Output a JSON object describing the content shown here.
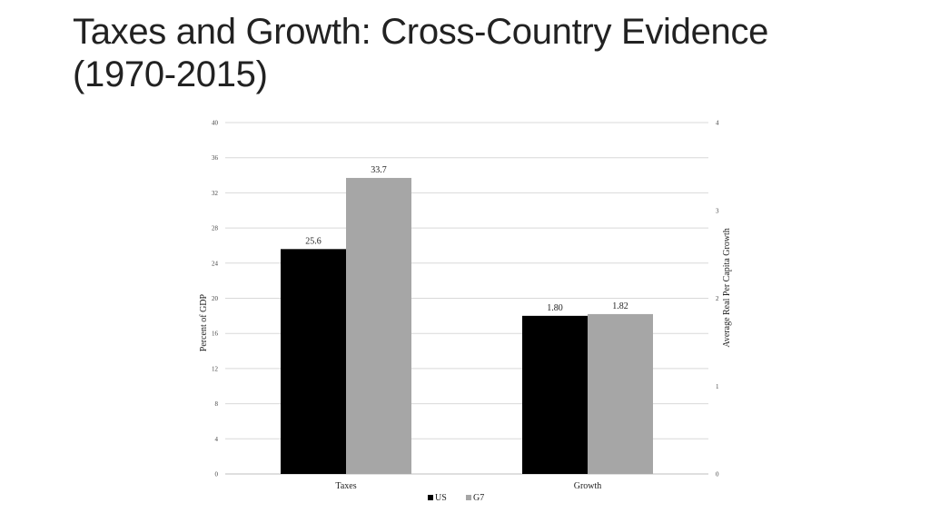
{
  "slide": {
    "title_line1": "Taxes and Growth: Cross-Country Evidence",
    "title_line2": "(1970-2015)"
  },
  "chart_data": {
    "type": "bar",
    "categories": [
      "Taxes",
      "Growth"
    ],
    "series": [
      {
        "name": "US",
        "color": "#000000"
      },
      {
        "name": "G7",
        "color": "#a6a6a6"
      }
    ],
    "points": [
      {
        "category": "Taxes",
        "series": "US",
        "value": 25.6,
        "label": "25.6",
        "axis": "left"
      },
      {
        "category": "Taxes",
        "series": "G7",
        "value": 33.7,
        "label": "33.7",
        "axis": "left"
      },
      {
        "category": "Growth",
        "series": "US",
        "value": 1.8,
        "label": "1.80",
        "axis": "right"
      },
      {
        "category": "Growth",
        "series": "G7",
        "value": 1.82,
        "label": "1.82",
        "axis": "right"
      }
    ],
    "left_axis": {
      "label": "Percent of GDP",
      "min": 0,
      "max": 40,
      "ticks": [
        0,
        4,
        8,
        12,
        16,
        20,
        24,
        28,
        32,
        36,
        40
      ]
    },
    "right_axis": {
      "label": "Average Real Per Capita Growth",
      "min": 0,
      "max": 4,
      "ticks": [
        0,
        1,
        2,
        3,
        4
      ]
    },
    "grid": true,
    "legend_position": "bottom"
  }
}
